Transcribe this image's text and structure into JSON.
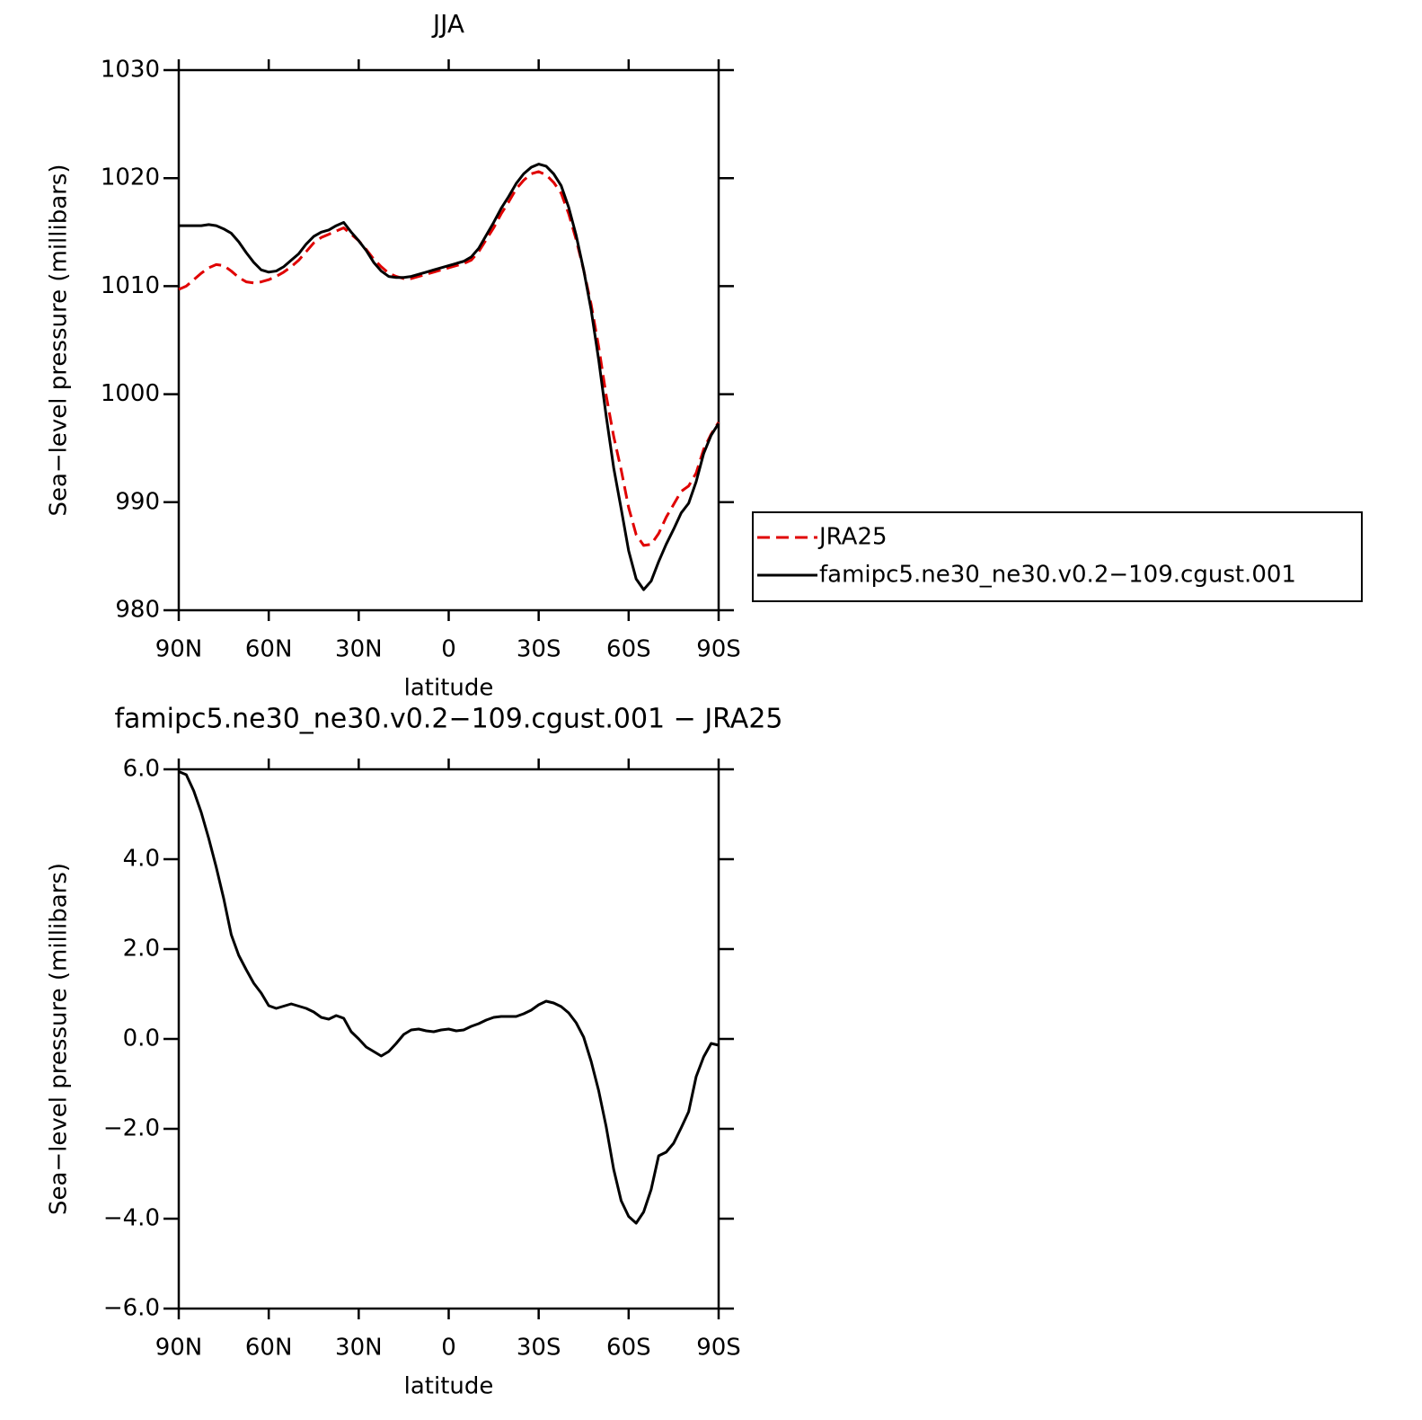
{
  "chart_data": [
    {
      "type": "line",
      "title": "JJA",
      "xlabel": "latitude",
      "ylabel": "Sea−level pressure (millibars)",
      "x": [
        90,
        87.5,
        85,
        82.5,
        80,
        77.5,
        75,
        72.5,
        70,
        67.5,
        65,
        62.5,
        60,
        57.5,
        55,
        52.5,
        50,
        47.5,
        45,
        42.5,
        40,
        37.5,
        35,
        32.5,
        30,
        27.5,
        25,
        22.5,
        20,
        17.5,
        15,
        12.5,
        10,
        7.5,
        5,
        2.5,
        0,
        -2.5,
        -5,
        -7.5,
        -10,
        -12.5,
        -15,
        -17.5,
        -20,
        -22.5,
        -25,
        -27.5,
        -30,
        -32.5,
        -35,
        -37.5,
        -40,
        -42.5,
        -45,
        -47.5,
        -50,
        -52.5,
        -55,
        -57.5,
        -60,
        -62.5,
        -65,
        -67.5,
        -70,
        -72.5,
        -75,
        -77.5,
        -80,
        -82.5,
        -85,
        -87.5,
        -90
      ],
      "series": [
        {
          "name": "JRA25",
          "color": "#e00000",
          "line_style": "dashed",
          "values": [
            1009.7,
            1010.0,
            1010.6,
            1011.2,
            1011.7,
            1012.0,
            1011.9,
            1011.4,
            1010.8,
            1010.4,
            1010.3,
            1010.4,
            1010.6,
            1010.9,
            1011.3,
            1011.8,
            1012.4,
            1013.2,
            1014.0,
            1014.5,
            1014.8,
            1015.1,
            1015.4,
            1014.8,
            1014.2,
            1013.4,
            1012.5,
            1011.8,
            1011.2,
            1010.9,
            1010.7,
            1010.7,
            1010.9,
            1011.1,
            1011.3,
            1011.5,
            1011.7,
            1011.9,
            1012.1,
            1012.4,
            1013.2,
            1014.3,
            1015.4,
            1016.7,
            1017.8,
            1019.0,
            1019.8,
            1020.4,
            1020.6,
            1020.3,
            1019.6,
            1018.6,
            1016.7,
            1014.3,
            1011.5,
            1008.3,
            1004.4,
            999.9,
            996.1,
            993.0,
            989.5,
            987.0,
            986.0,
            986.1,
            987.1,
            988.6,
            989.8,
            991.0,
            991.5,
            992.7,
            994.9,
            996.3,
            997.4
          ]
        },
        {
          "name": "famipc5.ne30_ne30.v0.2−109.cgust.001",
          "color": "#000000",
          "line_style": "solid",
          "values": [
            1015.6,
            1015.6,
            1015.6,
            1015.6,
            1015.7,
            1015.6,
            1015.3,
            1014.9,
            1014.1,
            1013.1,
            1012.2,
            1011.5,
            1011.3,
            1011.4,
            1011.8,
            1012.4,
            1013.0,
            1013.9,
            1014.6,
            1015.0,
            1015.2,
            1015.6,
            1015.9,
            1015.0,
            1014.2,
            1013.3,
            1012.2,
            1011.4,
            1010.9,
            1010.8,
            1010.8,
            1010.9,
            1011.1,
            1011.3,
            1011.5,
            1011.7,
            1011.9,
            1012.1,
            1012.3,
            1012.7,
            1013.5,
            1014.7,
            1015.9,
            1017.2,
            1018.3,
            1019.5,
            1020.4,
            1021.0,
            1021.3,
            1021.1,
            1020.4,
            1019.3,
            1017.3,
            1014.7,
            1011.5,
            1007.8,
            1003.2,
            998.0,
            993.2,
            989.4,
            985.5,
            982.9,
            981.9,
            982.7,
            984.5,
            986.1,
            987.5,
            989.0,
            989.9,
            991.9,
            994.5,
            996.2,
            997.3
          ]
        }
      ],
      "xlim": [
        90,
        -90
      ],
      "xticks": [
        {
          "value": 90,
          "label": "90N"
        },
        {
          "value": 60,
          "label": "60N"
        },
        {
          "value": 30,
          "label": "30N"
        },
        0,
        {
          "value": -30,
          "label": "30S"
        },
        {
          "value": -60,
          "label": "60S"
        },
        {
          "value": -90,
          "label": "90S"
        }
      ],
      "ylim": [
        980,
        1030
      ],
      "yticks": [
        980,
        990,
        1000,
        1010,
        1020,
        1030
      ],
      "legend": "outside-right"
    },
    {
      "type": "line",
      "title": "famipc5.ne30_ne30.v0.2−109.cgust.001 − JRA25",
      "xlabel": "latitude",
      "ylabel": "Sea−level pressure (millibars)",
      "x": [
        90,
        87.5,
        85,
        82.5,
        80,
        77.5,
        75,
        72.5,
        70,
        67.5,
        65,
        62.5,
        60,
        57.5,
        55,
        52.5,
        50,
        47.5,
        45,
        42.5,
        40,
        37.5,
        35,
        32.5,
        30,
        27.5,
        25,
        22.5,
        20,
        17.5,
        15,
        12.5,
        10,
        7.5,
        5,
        2.5,
        0,
        -2.5,
        -5,
        -7.5,
        -10,
        -12.5,
        -15,
        -17.5,
        -20,
        -22.5,
        -25,
        -27.5,
        -30,
        -32.5,
        -35,
        -37.5,
        -40,
        -42.5,
        -45,
        -47.5,
        -50,
        -52.5,
        -55,
        -57.5,
        -60,
        -62.5,
        -65,
        -67.5,
        -70,
        -72.5,
        -75,
        -77.5,
        -80,
        -82.5,
        -85,
        -87.5,
        -90
      ],
      "series": [
        {
          "color": "#000000",
          "line_style": "solid",
          "values": [
            5.95,
            5.88,
            5.52,
            5.04,
            4.46,
            3.82,
            3.12,
            2.32,
            1.86,
            1.54,
            1.24,
            1.02,
            0.74,
            0.68,
            0.73,
            0.78,
            0.73,
            0.68,
            0.6,
            0.48,
            0.44,
            0.52,
            0.46,
            0.16,
            0.0,
            -0.18,
            -0.28,
            -0.38,
            -0.28,
            -0.1,
            0.1,
            0.2,
            0.22,
            0.18,
            0.16,
            0.2,
            0.22,
            0.18,
            0.2,
            0.28,
            0.34,
            0.42,
            0.48,
            0.5,
            0.5,
            0.5,
            0.56,
            0.64,
            0.76,
            0.84,
            0.8,
            0.72,
            0.58,
            0.36,
            0.04,
            -0.5,
            -1.15,
            -1.95,
            -2.9,
            -3.6,
            -3.95,
            -4.1,
            -3.85,
            -3.35,
            -2.6,
            -2.52,
            -2.32,
            -1.98,
            -1.62,
            -0.84,
            -0.4,
            -0.1,
            -0.14
          ]
        }
      ],
      "xlim": [
        90,
        -90
      ],
      "xticks": [
        {
          "value": 90,
          "label": "90N"
        },
        {
          "value": 60,
          "label": "60N"
        },
        {
          "value": 30,
          "label": "30N"
        },
        0,
        {
          "value": -30,
          "label": "30S"
        },
        {
          "value": -60,
          "label": "60S"
        },
        {
          "value": -90,
          "label": "90S"
        }
      ],
      "ylim": [
        -6,
        6
      ],
      "yticks": [
        {
          "value": -6,
          "label": "−6.0"
        },
        {
          "value": -4,
          "label": "−4.0"
        },
        {
          "value": -2,
          "label": "−2.0"
        },
        {
          "value": 0,
          "label": "0.0"
        },
        {
          "value": 2,
          "label": "2.0"
        },
        {
          "value": 4,
          "label": "4.0"
        },
        {
          "value": 6,
          "label": "6.0"
        }
      ]
    }
  ]
}
